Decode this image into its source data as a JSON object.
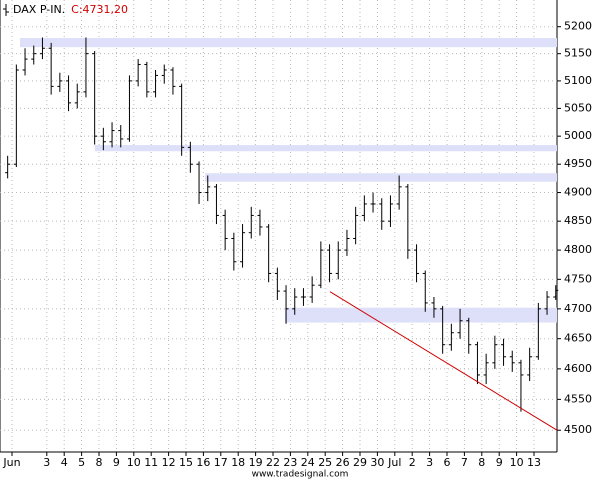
{
  "chart_data": {
    "type": "ohlc",
    "symbol": "DAX P-IN.",
    "last_label": "C:4731,20",
    "footer": "www.tradesignal.com",
    "categories": [
      "Jun",
      null,
      null,
      null,
      "3",
      null,
      "4",
      null,
      "5",
      null,
      "8",
      null,
      "9",
      null,
      "10",
      null,
      "11",
      null,
      "12",
      null,
      "15",
      null,
      "16",
      null,
      "17",
      null,
      "18",
      null,
      "19",
      null,
      "22",
      null,
      "23",
      null,
      "24",
      null,
      "25",
      null,
      "26",
      null,
      "29",
      null,
      "30",
      null,
      "Jul",
      null,
      "2",
      null,
      "3",
      null,
      "6",
      null,
      "7",
      null,
      "8",
      null,
      "9",
      null,
      "10",
      null,
      "13",
      null,
      null,
      null
    ],
    "open": [
      4935,
      4950,
      5120,
      5140,
      5150,
      5160,
      5090,
      5100,
      5060,
      5080,
      5150,
      5000,
      4990,
      5010,
      4995,
      5100,
      5130,
      5080,
      5110,
      5120,
      5090,
      4980,
      4950,
      4900,
      4910,
      4860,
      4820,
      4780,
      4830,
      4860,
      4840,
      4760,
      4730,
      4700,
      4720,
      4720,
      4740,
      4800,
      4760,
      4800,
      4820,
      4860,
      4880,
      4880,
      4850,
      4880,
      4910,
      4800,
      4760,
      4710,
      4700,
      4640,
      4660,
      4680,
      4640,
      4590,
      4610,
      4640,
      4620,
      4610,
      4590,
      4620,
      4700,
      4720
    ],
    "high": [
      4965,
      5130,
      5160,
      5165,
      5180,
      5170,
      5115,
      5110,
      5095,
      5180,
      5155,
      5015,
      5025,
      5020,
      5110,
      5140,
      5135,
      5120,
      5130,
      5125,
      5095,
      4990,
      4955,
      4930,
      4915,
      4870,
      4830,
      4845,
      4875,
      4870,
      4845,
      4770,
      4740,
      4735,
      4735,
      4755,
      4815,
      4810,
      4815,
      4835,
      4875,
      4895,
      4900,
      4890,
      4895,
      4930,
      4915,
      4810,
      4765,
      4720,
      4705,
      4675,
      4700,
      4685,
      4645,
      4625,
      4655,
      4650,
      4630,
      4615,
      4635,
      4710,
      4730,
      4740
    ],
    "low": [
      4925,
      4945,
      5110,
      5130,
      5140,
      5075,
      5080,
      5045,
      5050,
      5070,
      4985,
      4975,
      4980,
      4980,
      4990,
      5090,
      5070,
      5070,
      5095,
      5075,
      4965,
      4935,
      4880,
      4885,
      4845,
      4800,
      4765,
      4770,
      4820,
      4825,
      4745,
      4715,
      4675,
      4690,
      4705,
      4710,
      4735,
      4745,
      4750,
      4790,
      4810,
      4850,
      4865,
      4835,
      4840,
      4870,
      4785,
      4745,
      4695,
      4685,
      4625,
      4630,
      4650,
      4625,
      4575,
      4575,
      4600,
      4605,
      4595,
      4530,
      4580,
      4615,
      4690,
      4715
    ],
    "close": [
      4950,
      5120,
      5140,
      5150,
      5160,
      5090,
      5100,
      5060,
      5080,
      5150,
      5000,
      4990,
      5010,
      4995,
      5100,
      5130,
      5080,
      5110,
      5120,
      5090,
      4980,
      4950,
      4900,
      4910,
      4860,
      4820,
      4780,
      4830,
      4860,
      4840,
      4760,
      4730,
      4700,
      4720,
      4720,
      4740,
      4800,
      4760,
      4800,
      4820,
      4860,
      4880,
      4880,
      4850,
      4880,
      4910,
      4800,
      4760,
      4710,
      4700,
      4640,
      4660,
      4680,
      4640,
      4590,
      4610,
      4640,
      4620,
      4610,
      4590,
      4620,
      4700,
      4720,
      4731.2
    ],
    "color": "#000000",
    "ylim": [
      4465,
      5250
    ],
    "yticks": [
      4500,
      4550,
      4600,
      4650,
      4700,
      4750,
      4800,
      4850,
      4900,
      4950,
      5000,
      5050,
      5100,
      5150,
      5200
    ],
    "log_y": true,
    "grid": true,
    "zones": [
      {
        "low": 5162,
        "high": 5179
      },
      {
        "low": 4973,
        "high": 4984
      },
      {
        "low": 4919,
        "high": 4934
      },
      {
        "low": 4677,
        "high": 4702
      }
    ],
    "zone_color": "#dde0f8",
    "trendline": {
      "values": [
        4729,
        4500
      ],
      "color": "#d00000"
    }
  }
}
